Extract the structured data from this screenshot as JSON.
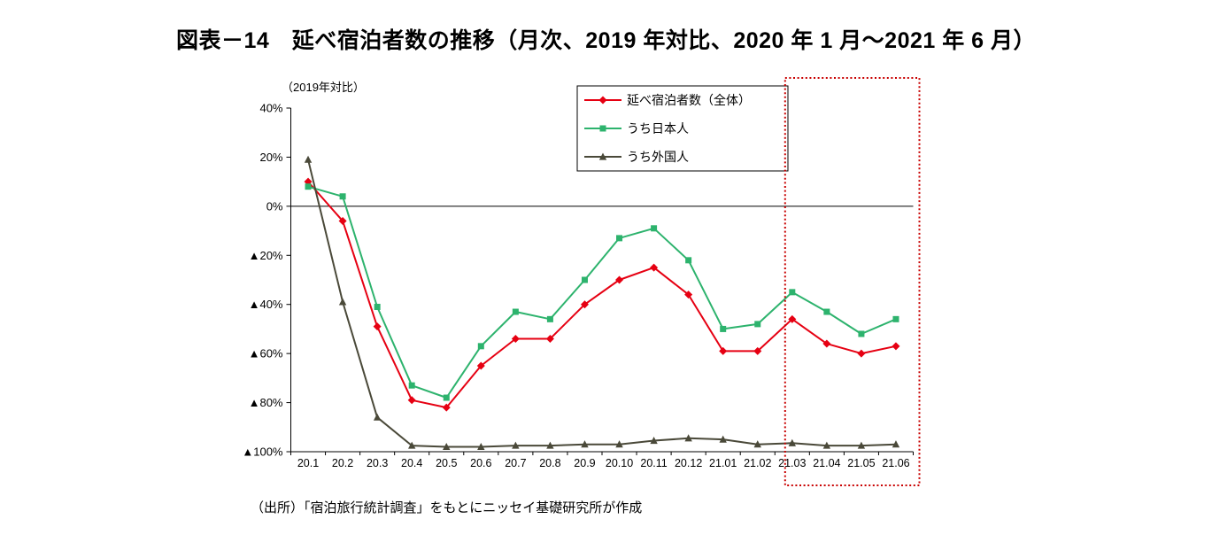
{
  "page": {
    "title": "図表－14　延べ宿泊者数の推移（月次、2019 年対比、2020 年 1 月～2021 年 6 月）",
    "source_note": "（出所）「宿泊旅行統計調査」をもとにニッセイ基礎研究所が作成"
  },
  "chart_data": {
    "type": "line",
    "axis_note": "（2019年対比）",
    "categories": [
      "20.1",
      "20.2",
      "20.3",
      "20.4",
      "20.5",
      "20.6",
      "20.7",
      "20.8",
      "20.9",
      "20.10",
      "20.11",
      "20.12",
      "21.01",
      "21.02",
      "21.03",
      "21.04",
      "21.05",
      "21.06"
    ],
    "series": [
      {
        "name": "延べ宿泊者数（全体）",
        "color": "#e60012",
        "marker": "diamond",
        "values": [
          10,
          -6,
          -49,
          -79,
          -82,
          -65,
          -54,
          -54,
          -40,
          -30,
          -25,
          -36,
          -59,
          -59,
          -46,
          -56,
          -60,
          -57
        ]
      },
      {
        "name": "うち日本人",
        "color": "#2db36d",
        "marker": "square",
        "values": [
          8,
          4,
          -41,
          -73,
          -78,
          -57,
          -43,
          -46,
          -30,
          -13,
          -9,
          -22,
          -50,
          -48,
          -35,
          -43,
          -52,
          -46
        ]
      },
      {
        "name": "うち外国人",
        "color": "#4a4939",
        "marker": "triangle",
        "values": [
          19,
          -39,
          -86,
          -97.5,
          -98,
          -98,
          -97.5,
          -97.5,
          -97,
          -97,
          -95.5,
          -94.5,
          -95,
          -97,
          -96.5,
          -97.5,
          -97.5,
          -97
        ]
      }
    ],
    "ylim": [
      -100,
      40
    ],
    "ytick_step": 20,
    "negative_prefix": "▲",
    "legend_position": "top-center",
    "grid": "off",
    "highlight": {
      "from": "21.03",
      "to": "21.06",
      "color": "#c80000"
    }
  }
}
